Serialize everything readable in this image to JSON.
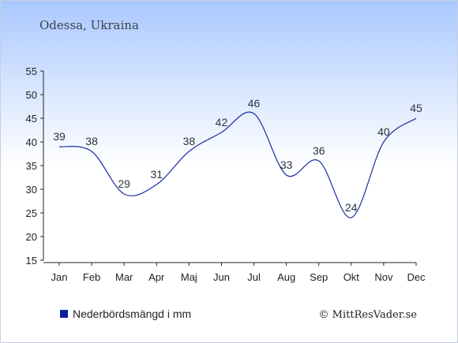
{
  "location": "Odessa, Ukraina",
  "legend_label": "Nederbördsmängd i mm",
  "credit": "© MittResVader.se",
  "colors": {
    "line": "#1a2fa0",
    "legend_square": "#0a1fa0",
    "text": "#2b3340",
    "axis": "#222222",
    "bg_top": "#a9c8ff",
    "bg_bottom": "#ffffff"
  },
  "chart_data": {
    "type": "line",
    "title": "Odessa, Ukraina",
    "categories": [
      "Jan",
      "Feb",
      "Mar",
      "Apr",
      "Maj",
      "Jun",
      "Jul",
      "Aug",
      "Sep",
      "Okt",
      "Nov",
      "Dec"
    ],
    "series": [
      {
        "name": "Nederbördsmängd i mm",
        "values": [
          39,
          38,
          29,
          31,
          38,
          42,
          46,
          33,
          36,
          24,
          40,
          45
        ]
      }
    ],
    "y_ticks": [
      15,
      20,
      25,
      30,
      35,
      40,
      45,
      50,
      55
    ],
    "ylim": [
      15,
      55
    ],
    "grid": false,
    "legend_position": "bottom-left"
  }
}
